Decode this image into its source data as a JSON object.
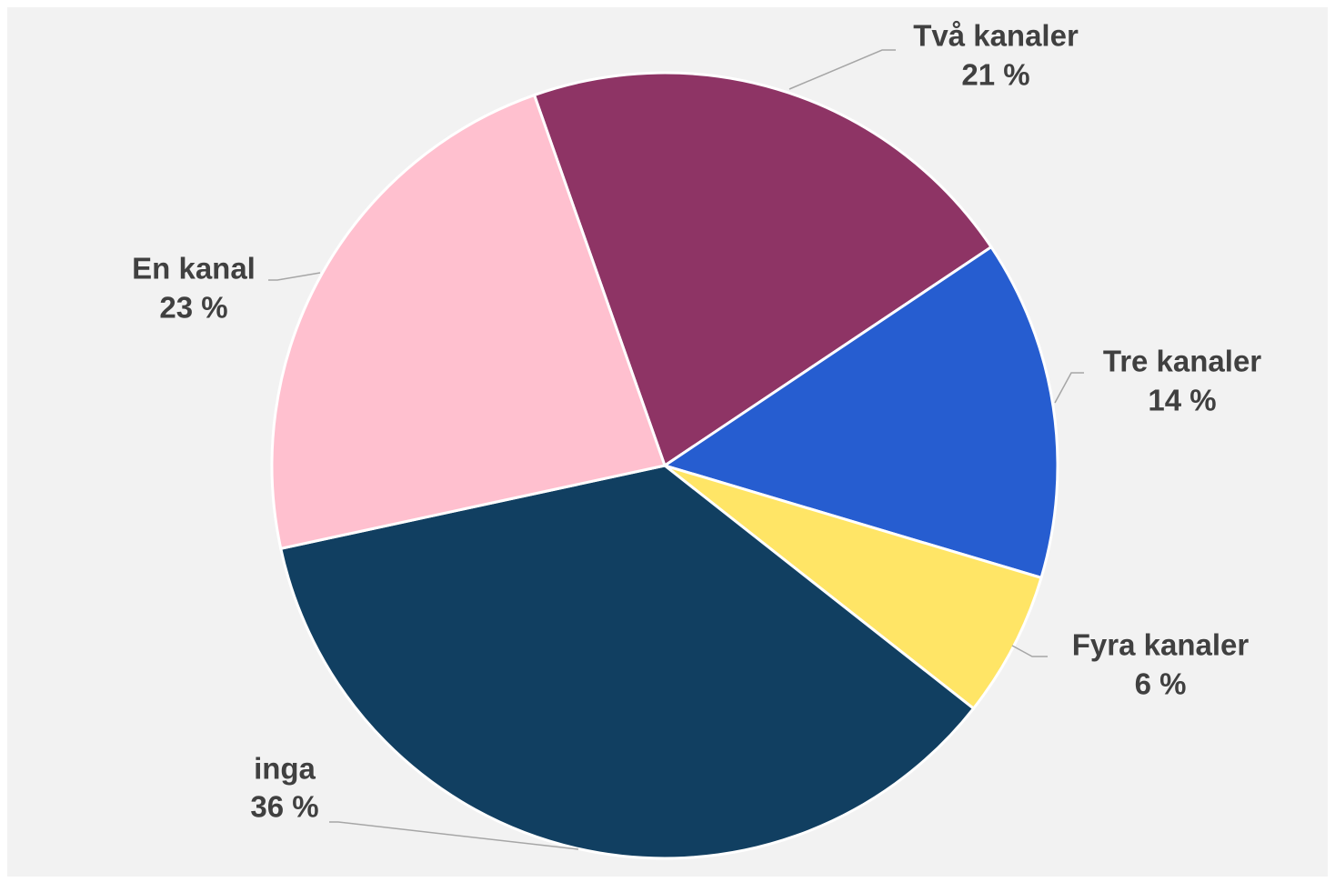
{
  "chart_data": {
    "type": "pie",
    "categories": [
      "Två kanaler",
      "Tre kanaler",
      "Fyra kanaler",
      "inga",
      "En kanal"
    ],
    "values": [
      21,
      14,
      6,
      36,
      23
    ],
    "value_labels": [
      "21 %",
      "14 %",
      "6 %",
      "36 %",
      "23 %"
    ],
    "colors": [
      "#8e3465",
      "#265dd0",
      "#ffe566",
      "#113f61",
      "#ffc0cf"
    ]
  }
}
